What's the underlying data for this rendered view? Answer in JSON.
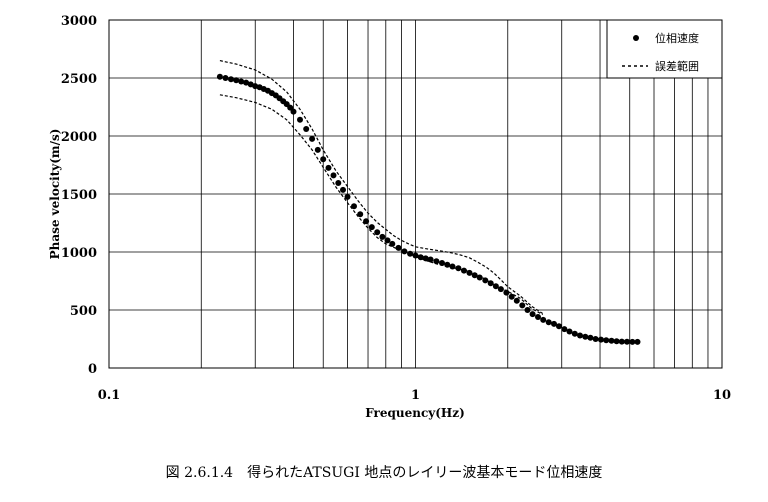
{
  "chart_data": {
    "type": "scatter",
    "ylabel": "Phase velocity(m/s)",
    "xlabel": "Frequency(Hz)",
    "x_scale": "log",
    "xlim": [
      0.1,
      10
    ],
    "ylim": [
      0,
      3000
    ],
    "x_ticks": [
      0.1,
      1,
      10
    ],
    "x_tick_labels": [
      "0.1",
      "1",
      "10"
    ],
    "y_ticks": [
      0,
      500,
      1000,
      1500,
      2000,
      2500,
      3000
    ],
    "y_tick_labels": [
      "0",
      "500",
      "1000",
      "1500",
      "2000",
      "2500",
      "3000"
    ],
    "grid": true,
    "legend_position": "top-right",
    "series": [
      {
        "name": "位相速度",
        "marker": "filled-circle",
        "color": "#000000",
        "x": [
          0.23,
          0.24,
          0.25,
          0.26,
          0.27,
          0.28,
          0.29,
          0.3,
          0.31,
          0.32,
          0.33,
          0.34,
          0.35,
          0.36,
          0.37,
          0.38,
          0.39,
          0.4,
          0.42,
          0.44,
          0.46,
          0.48,
          0.5,
          0.52,
          0.54,
          0.56,
          0.58,
          0.6,
          0.63,
          0.66,
          0.69,
          0.72,
          0.75,
          0.78,
          0.81,
          0.84,
          0.88,
          0.92,
          0.96,
          1.0,
          1.04,
          1.08,
          1.12,
          1.17,
          1.22,
          1.27,
          1.32,
          1.38,
          1.44,
          1.5,
          1.56,
          1.62,
          1.69,
          1.76,
          1.83,
          1.9,
          1.98,
          2.06,
          2.14,
          2.23,
          2.32,
          2.41,
          2.51,
          2.61,
          2.72,
          2.83,
          2.94,
          3.06,
          3.18,
          3.31,
          3.44,
          3.58,
          3.72,
          3.87,
          4.03,
          4.19,
          4.36,
          4.53,
          4.71,
          4.9,
          5.1,
          5.3
        ],
        "y": [
          2510,
          2500,
          2490,
          2480,
          2470,
          2460,
          2445,
          2430,
          2420,
          2405,
          2390,
          2370,
          2350,
          2325,
          2300,
          2275,
          2245,
          2210,
          2140,
          2060,
          1975,
          1880,
          1800,
          1725,
          1660,
          1595,
          1535,
          1475,
          1395,
          1325,
          1265,
          1215,
          1170,
          1130,
          1100,
          1070,
          1035,
          1005,
          985,
          970,
          955,
          945,
          935,
          920,
          905,
          890,
          875,
          860,
          840,
          820,
          800,
          780,
          755,
          730,
          705,
          680,
          650,
          615,
          580,
          540,
          500,
          465,
          440,
          415,
          395,
          380,
          360,
          335,
          315,
          295,
          280,
          270,
          260,
          250,
          245,
          240,
          235,
          230,
          228,
          226,
          225,
          225
        ]
      },
      {
        "name": "誤差範囲",
        "line_style": "dashed",
        "color": "#000000",
        "bounds": {
          "upper": {
            "x": [
              0.23,
              0.26,
              0.3,
              0.34,
              0.38,
              0.42,
              0.46,
              0.5,
              0.55,
              0.6,
              0.65,
              0.7,
              0.75,
              0.8,
              0.85,
              0.9,
              0.95,
              1.0,
              1.1,
              1.2,
              1.3,
              1.4,
              1.5,
              1.6,
              1.7,
              1.8,
              1.9,
              2.0,
              2.2,
              2.4,
              2.6
            ],
            "y": [
              2650,
              2620,
              2570,
              2490,
              2380,
              2230,
              2060,
              1880,
              1700,
              1565,
              1440,
              1335,
              1255,
              1195,
              1140,
              1100,
              1070,
              1045,
              1025,
              1010,
              995,
              975,
              950,
              910,
              870,
              820,
              760,
              700,
              620,
              530,
              470
            ]
          },
          "lower": {
            "x": [
              0.23,
              0.26,
              0.3,
              0.34,
              0.38,
              0.42,
              0.46,
              0.5,
              0.55,
              0.6,
              0.65,
              0.7,
              0.75,
              0.8,
              0.85,
              0.9,
              0.95,
              1.0,
              1.1,
              1.2,
              1.3,
              1.4,
              1.5,
              1.6,
              1.7,
              1.8,
              1.9,
              2.0,
              2.2,
              2.4,
              2.6
            ],
            "y": [
              2355,
              2330,
              2290,
              2230,
              2140,
              2010,
              1880,
              1730,
              1560,
              1425,
              1305,
              1205,
              1125,
              1070,
              1040,
              1010,
              990,
              960,
              920,
              890,
              870,
              850,
              835,
              800,
              760,
              720,
              690,
              660,
              600,
              510,
              460
            ]
          }
        }
      }
    ]
  },
  "caption": "図 2.6.1.4　得られたATSUGI 地点のレイリー波基本モード位相速度"
}
